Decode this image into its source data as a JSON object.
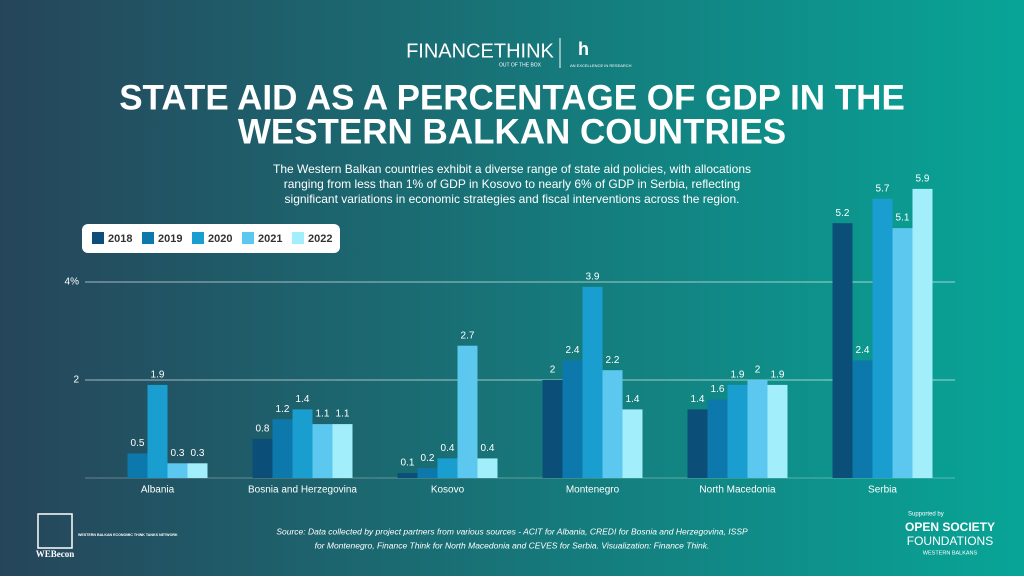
{
  "header": {
    "logo": "FINANCETHINK",
    "logo_tagline": "OUT OF THE BOX",
    "partner_tagline": "AN EXCELLENCE IN RESEARCH"
  },
  "chart_data": {
    "type": "bar",
    "title": [
      "STATE AID AS A PERCENTAGE OF GDP IN THE",
      "WESTERN BALKAN COUNTRIES"
    ],
    "subtitle": [
      "The Western Balkan countries exhibit a diverse range of state aid policies, with allocations",
      "ranging from less than 1% of GDP in Kosovo to nearly 6% of GDP in Serbia, reflecting",
      "significant variations in economic strategies and fiscal interventions across the region."
    ],
    "categories": [
      "Albania",
      "Bosnia and Herzegovina",
      "Kosovo",
      "Montenegro",
      "North Macedonia",
      "Serbia"
    ],
    "series": [
      {
        "name": "2018",
        "color": "#0b4f78",
        "values": [
          null,
          0.8,
          0.1,
          2,
          1.4,
          5.2
        ]
      },
      {
        "name": "2019",
        "color": "#0d78ab",
        "values": [
          0.5,
          1.2,
          0.2,
          2.4,
          1.6,
          2.4
        ]
      },
      {
        "name": "2020",
        "color": "#1a9ed0",
        "values": [
          1.9,
          1.4,
          0.4,
          3.9,
          1.9,
          5.7
        ]
      },
      {
        "name": "2021",
        "color": "#5cc8f0",
        "values": [
          0.3,
          1.1,
          2.7,
          2.2,
          2,
          5.1
        ]
      },
      {
        "name": "2022",
        "color": "#a3eefb",
        "values": [
          0.3,
          1.1,
          0.4,
          1.4,
          1.9,
          5.9
        ]
      }
    ],
    "ylim": [
      0,
      6
    ],
    "yticks": [
      {
        "value": 2,
        "label": "2"
      },
      {
        "value": 4,
        "label": "4%"
      }
    ],
    "grid": true,
    "legend": "top-left",
    "source": [
      "Source: Data collected by project partners from various sources - ACIT for Albania, CREDI for Bosnia and Herzegovina, ISSP",
      "for Montenegro, Finance Think for North Macedonia and CEVES for Serbia. Visualization: Finance Think."
    ]
  },
  "footer": {
    "network": "WEBecon",
    "network_full": "WESTERN BALKAN ECONOMIC THINK TANKS NETWORK",
    "supported": "Supported by",
    "funder": [
      "OPEN SOCIETY",
      "FOUNDATIONS",
      "WESTERN BALKANS"
    ]
  }
}
